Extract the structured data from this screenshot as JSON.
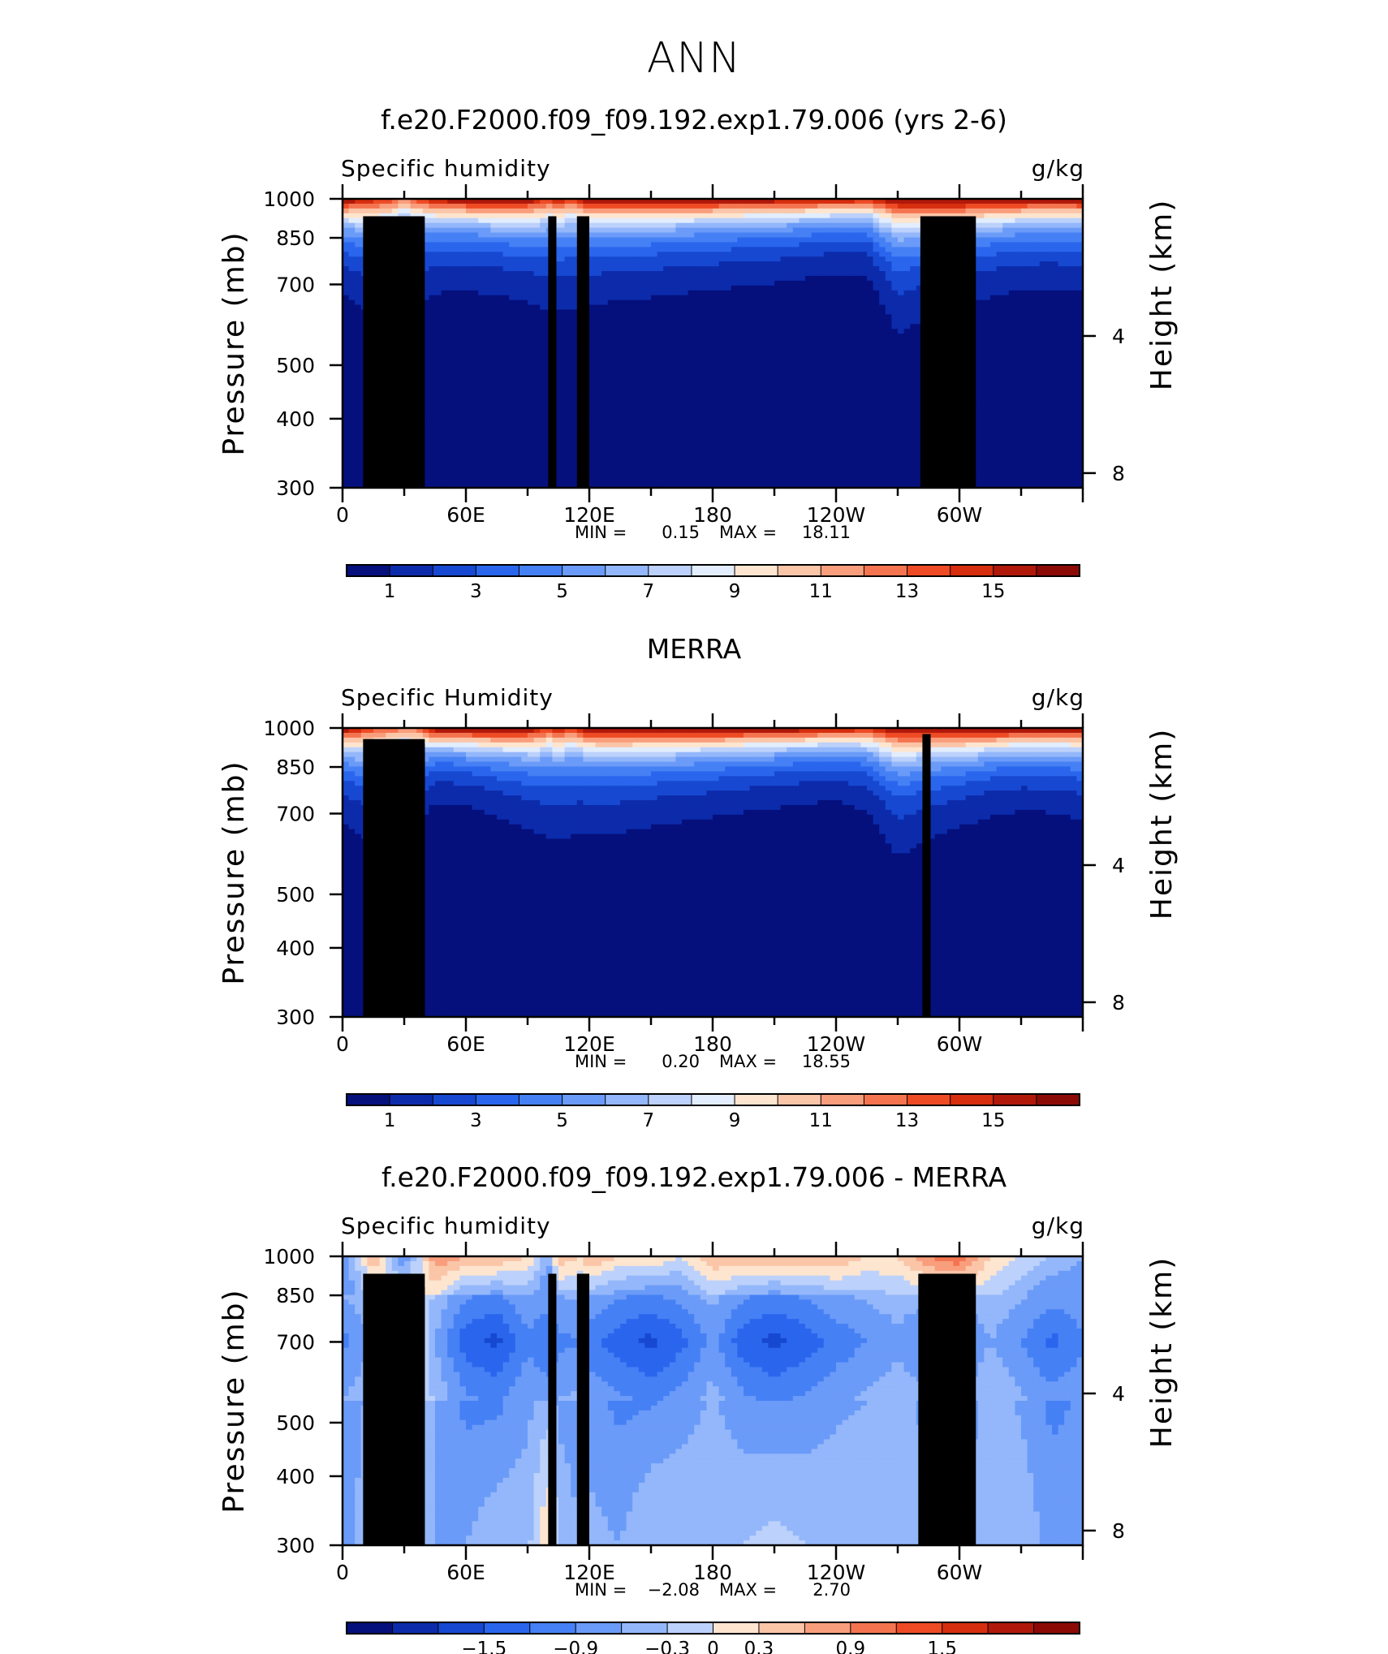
{
  "page_title": "ANN",
  "chart_data": [
    {
      "type": "heatmap",
      "title": "f.e20.F2000.f09_f09.192.exp1.79.006 (yrs 2-6)",
      "left_label": "Specific humidity",
      "unit_label": "g/kg",
      "ylabel": "Pressure (mb)",
      "ylabel_right": "Height (km)",
      "yticks": [
        300,
        400,
        500,
        700,
        850,
        1000
      ],
      "yticks_right": [
        8,
        4
      ],
      "xticks": [
        "0",
        "60E",
        "120E",
        "180",
        "120W",
        "60W"
      ],
      "ylim": [
        1000,
        300
      ],
      "stats": {
        "min_label": "MIN =",
        "min": "0.15",
        "max_label": "MAX =",
        "max": "18.11"
      },
      "colorbar_labels": [
        "1",
        "3",
        "5",
        "7",
        "9",
        "11",
        "13",
        "15"
      ],
      "colorbar_levels": [
        0,
        1,
        2,
        3,
        4,
        5,
        6,
        7,
        8,
        9,
        10,
        11,
        12,
        13,
        14,
        15,
        16
      ],
      "x_lon": [
        0,
        15,
        25,
        30,
        35,
        45,
        60,
        80,
        95,
        100,
        105,
        110,
        115,
        120,
        135,
        150,
        180,
        210,
        240,
        255,
        270,
        285,
        300,
        315,
        330,
        345,
        360
      ],
      "surface_q": [
        17,
        15,
        14,
        12,
        14,
        16,
        17,
        17.5,
        16,
        14,
        16,
        14.5,
        15,
        17,
        17.5,
        17.5,
        17,
        16.5,
        16,
        15,
        17,
        17.5,
        18,
        17.5,
        17,
        16.5,
        17
      ],
      "scale_height": [
        96,
        120,
        118,
        122,
        115,
        100,
        95,
        100,
        110,
        120,
        115,
        118,
        115,
        108,
        102,
        100,
        95,
        90,
        82,
        85,
        130,
        115,
        105,
        100,
        95,
        95,
        96
      ],
      "topography": [
        {
          "lon0": 10,
          "lon1": 40,
          "p": 930
        },
        {
          "lon0": 28,
          "lon1": 35,
          "p": 880
        },
        {
          "lon0": 100,
          "lon1": 104,
          "p": 930
        },
        {
          "lon0": 114,
          "lon1": 120,
          "p": 930
        },
        {
          "lon0": 281,
          "lon1": 308,
          "p": 930
        }
      ]
    },
    {
      "type": "heatmap",
      "title": "MERRA",
      "left_label": "Specific Humidity",
      "unit_label": "g/kg",
      "ylabel": "Pressure (mb)",
      "ylabel_right": "Height (km)",
      "yticks": [
        300,
        400,
        500,
        700,
        850,
        1000
      ],
      "yticks_right": [
        8,
        4
      ],
      "xticks": [
        "0",
        "60E",
        "120E",
        "180",
        "120W",
        "60W"
      ],
      "ylim": [
        1000,
        300
      ],
      "stats": {
        "min_label": "MIN =",
        "min": "0.20",
        "max_label": "MAX =",
        "max": "18.55"
      },
      "colorbar_labels": [
        "1",
        "3",
        "5",
        "7",
        "9",
        "11",
        "13",
        "15"
      ],
      "colorbar_levels": [
        0,
        1,
        2,
        3,
        4,
        5,
        6,
        7,
        8,
        9,
        10,
        11,
        12,
        13,
        14,
        15,
        16
      ],
      "x_lon": [
        0,
        15,
        25,
        30,
        35,
        40,
        45,
        60,
        80,
        95,
        100,
        105,
        110,
        115,
        120,
        135,
        150,
        180,
        210,
        240,
        255,
        270,
        285,
        300,
        315,
        330,
        345,
        360
      ],
      "surface_q": [
        17,
        14,
        13,
        12,
        12.5,
        15,
        17,
        17.5,
        17.5,
        16,
        14,
        16,
        14.5,
        15,
        17,
        17.5,
        17.5,
        17.5,
        17,
        16,
        15,
        17,
        17.5,
        18,
        17.5,
        17,
        16.5,
        17
      ],
      "scale_height": [
        95,
        125,
        128,
        132,
        130,
        95,
        80,
        82,
        95,
        108,
        118,
        112,
        116,
        112,
        108,
        105,
        100,
        92,
        85,
        80,
        92,
        125,
        110,
        100,
        92,
        88,
        90,
        95
      ],
      "topography": [
        {
          "lon0": 10,
          "lon1": 40,
          "p": 955
        },
        {
          "lon0": 25,
          "lon1": 40,
          "p": 935
        },
        {
          "lon0": 34,
          "lon1": 40,
          "p": 905
        },
        {
          "lon0": 282,
          "lon1": 286,
          "p": 975
        }
      ]
    },
    {
      "type": "heatmap",
      "title": "f.e20.F2000.f09_f09.192.exp1.79.006 - MERRA",
      "left_label": "Specific humidity",
      "unit_label": "g/kg",
      "ylabel": "Pressure (mb)",
      "ylabel_right": "Height (km)",
      "yticks": [
        300,
        400,
        500,
        700,
        850,
        1000
      ],
      "yticks_right": [
        8,
        4
      ],
      "xticks": [
        "0",
        "60E",
        "120E",
        "180",
        "120W",
        "60W"
      ],
      "ylim": [
        1000,
        300
      ],
      "stats": {
        "min_label": "MIN =",
        "min": "−2.08",
        "max_label": "MAX =",
        "max": "2.70"
      },
      "colorbar_labels": [
        "−1.5",
        "−0.9",
        "−0.3",
        "0",
        "0.3",
        "0.9",
        "1.5"
      ],
      "colorbar_levels": [
        -2.4,
        -2.1,
        -1.8,
        -1.5,
        -1.2,
        -0.9,
        -0.6,
        -0.3,
        0,
        0.3,
        0.6,
        0.9,
        1.2,
        1.5,
        1.8,
        2.1,
        2.4
      ],
      "x_lon": [
        0,
        15,
        30,
        45,
        60,
        75,
        90,
        100,
        105,
        115,
        120,
        135,
        150,
        165,
        180,
        195,
        210,
        225,
        240,
        255,
        270,
        285,
        300,
        315,
        330,
        345,
        360
      ],
      "diff_low": [
        -0.9,
        0.6,
        -0.9,
        0.9,
        0.6,
        0.6,
        0.3,
        -0.6,
        0.6,
        0.3,
        0.6,
        0.3,
        0.3,
        0.0,
        0.6,
        0.6,
        0.6,
        0.6,
        0.6,
        0.3,
        0.3,
        0.9,
        1.2,
        0.3,
        0.0,
        -0.3,
        -0.6
      ],
      "diff_mid": [
        -1.0,
        -0.6,
        0.6,
        -0.6,
        -1.4,
        -1.6,
        -1.0,
        -1.2,
        -1.0,
        -0.9,
        -1.1,
        -1.4,
        -1.6,
        -1.3,
        -0.8,
        -1.4,
        -1.6,
        -1.4,
        -1.1,
        -0.9,
        -0.7,
        -0.9,
        -1.0,
        -0.6,
        -0.9,
        -1.3,
        -1.0
      ],
      "diff_high": [
        -0.7,
        -0.4,
        0.4,
        -0.7,
        -0.6,
        -0.4,
        -0.4,
        0.3,
        -0.4,
        -0.6,
        -0.5,
        -0.6,
        -0.3,
        -0.3,
        -0.3,
        -0.3,
        -0.2,
        -0.3,
        -0.3,
        -0.3,
        -0.3,
        -0.5,
        -0.6,
        -0.4,
        -0.4,
        -0.7,
        -0.7
      ],
      "topography": [
        {
          "lon0": 10,
          "lon1": 40,
          "p": 930
        },
        {
          "lon0": 28,
          "lon1": 40,
          "p": 880
        },
        {
          "lon0": 100,
          "lon1": 104,
          "p": 930
        },
        {
          "lon0": 114,
          "lon1": 120,
          "p": 930
        },
        {
          "lon0": 280,
          "lon1": 308,
          "p": 930
        }
      ]
    }
  ],
  "colors": {
    "abs_palette": [
      "#05107d",
      "#0c2bab",
      "#1748d1",
      "#2a66ed",
      "#4680f5",
      "#6b9bf8",
      "#93b7fa",
      "#bcd1fb",
      "#e2edfd",
      "#fde5cf",
      "#fbc5a8",
      "#f99e7c",
      "#f57450",
      "#ee4b25",
      "#d62e0e",
      "#b0190a",
      "#8c0a05"
    ],
    "diff_palette": [
      "#05107d",
      "#0c2bab",
      "#1748d1",
      "#2a66ed",
      "#4680f5",
      "#6b9bf8",
      "#93b7fa",
      "#bcd1fb",
      "#fde5cf",
      "#fbc5a8",
      "#f99e7c",
      "#f57450",
      "#ee4b25",
      "#d62e0e",
      "#b0190a",
      "#8c0a05"
    ],
    "topography": "#000000"
  }
}
